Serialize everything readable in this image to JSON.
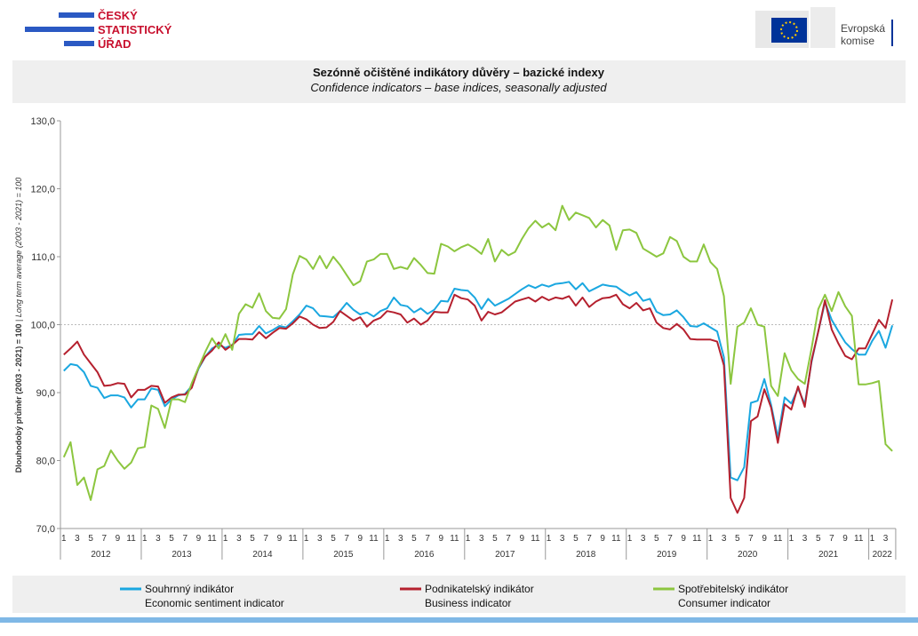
{
  "header": {
    "logo_left": [
      "ČESKÝ",
      "STATISTICKÝ",
      "ÚŘAD"
    ],
    "logo_right": [
      "Evropská",
      "komise"
    ]
  },
  "chart_data": {
    "type": "line",
    "title": "Sezónně očištěné indikátory důvěry – bazické indexy",
    "subtitle": "Confidence indicators – base indices, seasonally adjusted",
    "ylabel": "Dlouhodobý průměr (2003 - 2021) = 100",
    "ylabel_en": "Long term average (2003 - 2021) = 100",
    "categories": [
      "1",
      null,
      "3",
      null,
      "5",
      null,
      "7",
      null,
      "9",
      null,
      "11",
      null,
      "1",
      null,
      "3",
      null,
      "5",
      null,
      "7",
      null,
      "9",
      null,
      "11",
      null,
      "1",
      null,
      "3",
      null,
      "5",
      null,
      "7",
      null,
      "9",
      null,
      "11",
      null,
      "1",
      null,
      "3",
      null,
      "5",
      null,
      "7",
      null,
      "9",
      null,
      "11",
      null,
      "1",
      null,
      "3",
      null,
      "5",
      null,
      "7",
      null,
      "9",
      null,
      "11",
      null,
      "1",
      null,
      "3",
      null,
      "5",
      null,
      "7",
      null,
      "9",
      null,
      "11",
      null,
      "1",
      null,
      "3",
      null,
      "5",
      null,
      "7",
      null,
      "9",
      null,
      "11",
      null,
      "1",
      null,
      "3",
      null,
      "5",
      null,
      "7",
      null,
      "9",
      null,
      "11",
      null,
      "1",
      null,
      "3",
      null,
      "5",
      null,
      "7",
      null,
      "9",
      null,
      "11",
      null,
      "1",
      null,
      "3",
      null,
      "5",
      null,
      "7",
      null,
      "9",
      null,
      "11",
      null,
      "1",
      null,
      "3",
      null
    ],
    "years": [
      "2012",
      "2013",
      "2014",
      "2015",
      "2016",
      "2017",
      "2018",
      "2019",
      "2020",
      "2021",
      "2022"
    ],
    "ylim": [
      70,
      130
    ],
    "yticks": [
      {
        "value": 70,
        "label": "70,0"
      },
      {
        "value": 80,
        "label": "80,0"
      },
      {
        "value": 90,
        "label": "90,0"
      },
      {
        "value": 100,
        "label": "100,0"
      },
      {
        "value": 110,
        "label": "110,0"
      },
      {
        "value": 120,
        "label": "120,0"
      },
      {
        "value": 130,
        "label": "130,0"
      }
    ],
    "reference_line": 100,
    "series": [
      {
        "name": "Souhrnný indikátor",
        "name_en": "Economic sentiment indicator",
        "color": "#1aa7e0",
        "values": [
          93.2,
          94.2,
          94.0,
          93.0,
          91.0,
          90.7,
          89.2,
          89.6,
          89.6,
          89.3,
          87.8,
          89.0,
          89.0,
          90.6,
          90.4,
          88.0,
          89.0,
          89.6,
          89.8,
          91.0,
          93.5,
          95.3,
          96.5,
          97.0,
          96.6,
          97.0,
          98.5,
          98.6,
          98.6,
          99.8,
          98.7,
          99.2,
          99.8,
          99.6,
          100.5,
          101.5,
          102.8,
          102.4,
          101.3,
          101.2,
          101.1,
          102.0,
          103.2,
          102.2,
          101.5,
          101.8,
          101.2,
          102.0,
          102.4,
          104.0,
          102.9,
          102.7,
          101.8,
          102.4,
          101.6,
          102.2,
          103.5,
          103.4,
          105.3,
          105.1,
          105.0,
          104.0,
          102.3,
          103.8,
          102.8,
          103.3,
          103.8,
          104.5,
          105.2,
          105.8,
          105.4,
          105.9,
          105.6,
          106.0,
          106.1,
          106.3,
          105.2,
          106.1,
          104.9,
          105.4,
          105.9,
          105.7,
          105.6,
          104.9,
          104.3,
          104.8,
          103.5,
          103.8,
          101.9,
          101.4,
          101.5,
          102.1,
          101.1,
          99.8,
          99.7,
          100.2,
          99.6,
          99.0,
          95.2,
          77.5,
          77.1,
          79.0,
          88.5,
          88.8,
          92.0,
          88.2,
          83.4,
          89.3,
          88.4,
          90.6,
          88.3,
          94.5,
          99.0,
          103.3,
          100.7,
          99.0,
          97.4,
          96.4,
          95.6,
          95.6,
          97.6,
          99.1,
          96.6,
          99.9
        ]
      },
      {
        "name": "Podnikatelský indikátor",
        "name_en": "Business indicator",
        "color": "#b5202e",
        "values": [
          95.6,
          96.5,
          97.5,
          95.6,
          94.3,
          93.0,
          91.0,
          91.1,
          91.4,
          91.3,
          89.3,
          90.4,
          90.4,
          91.0,
          90.9,
          88.5,
          89.3,
          89.7,
          89.7,
          90.7,
          93.7,
          95.3,
          96.2,
          97.4,
          96.3,
          97.0,
          97.9,
          97.9,
          97.8,
          98.9,
          98.0,
          98.8,
          99.5,
          99.4,
          100.2,
          101.2,
          100.8,
          100.0,
          99.5,
          99.6,
          100.4,
          102.0,
          101.3,
          100.6,
          101.1,
          99.7,
          100.6,
          101.0,
          102.0,
          101.8,
          101.5,
          100.3,
          100.9,
          100.0,
          100.6,
          101.9,
          101.8,
          101.8,
          104.4,
          103.9,
          103.7,
          102.8,
          100.6,
          101.9,
          101.5,
          101.8,
          102.6,
          103.4,
          103.7,
          104.0,
          103.4,
          104.1,
          103.6,
          104.0,
          103.8,
          104.2,
          102.8,
          104.0,
          102.6,
          103.4,
          103.9,
          104.0,
          104.4,
          103.0,
          102.4,
          103.2,
          102.1,
          102.4,
          100.3,
          99.5,
          99.3,
          100.1,
          99.3,
          97.9,
          97.8,
          97.8,
          97.8,
          97.5,
          94.0,
          74.5,
          72.3,
          74.5,
          85.8,
          86.5,
          90.5,
          87.8,
          82.6,
          88.3,
          87.5,
          90.9,
          87.9,
          94.7,
          99.0,
          103.6,
          99.3,
          97.2,
          95.4,
          94.9,
          96.5,
          96.5,
          98.6,
          100.7,
          99.5,
          103.7
        ]
      },
      {
        "name": "Spotřebitelský indikátor",
        "name_en": "Consumer indicator",
        "color": "#8cc63f",
        "values": [
          80.5,
          82.7,
          76.4,
          77.5,
          74.2,
          78.7,
          79.2,
          81.5,
          80.0,
          78.8,
          79.7,
          81.8,
          82.0,
          88.1,
          87.6,
          84.8,
          89.0,
          89.0,
          88.6,
          91.4,
          93.7,
          96.0,
          98.0,
          96.5,
          98.6,
          96.3,
          101.6,
          103.0,
          102.5,
          104.6,
          102.0,
          101.0,
          100.9,
          102.3,
          107.4,
          110.1,
          109.6,
          108.2,
          110.1,
          108.3,
          110.0,
          108.8,
          107.3,
          105.8,
          106.4,
          109.3,
          109.6,
          110.4,
          110.4,
          108.2,
          108.5,
          108.2,
          109.8,
          108.8,
          107.6,
          107.5,
          111.9,
          111.5,
          110.8,
          111.4,
          111.8,
          111.2,
          110.4,
          112.6,
          109.3,
          111.0,
          110.2,
          110.7,
          112.6,
          114.2,
          115.3,
          114.3,
          114.9,
          113.9,
          117.5,
          115.4,
          116.5,
          116.1,
          115.7,
          114.3,
          115.4,
          114.6,
          111.0,
          113.9,
          114.0,
          113.5,
          111.2,
          110.6,
          110.0,
          110.5,
          112.9,
          112.3,
          110.0,
          109.3,
          109.3,
          111.8,
          109.2,
          108.2,
          104.2,
          91.3,
          99.7,
          100.3,
          102.4,
          100.0,
          99.7,
          91.0,
          89.5,
          95.8,
          93.3,
          92.0,
          91.3,
          96.5,
          102.3,
          104.4,
          102.0,
          104.8,
          102.7,
          101.3,
          91.2,
          91.2,
          91.4,
          91.7,
          82.4,
          81.4
        ]
      }
    ]
  }
}
